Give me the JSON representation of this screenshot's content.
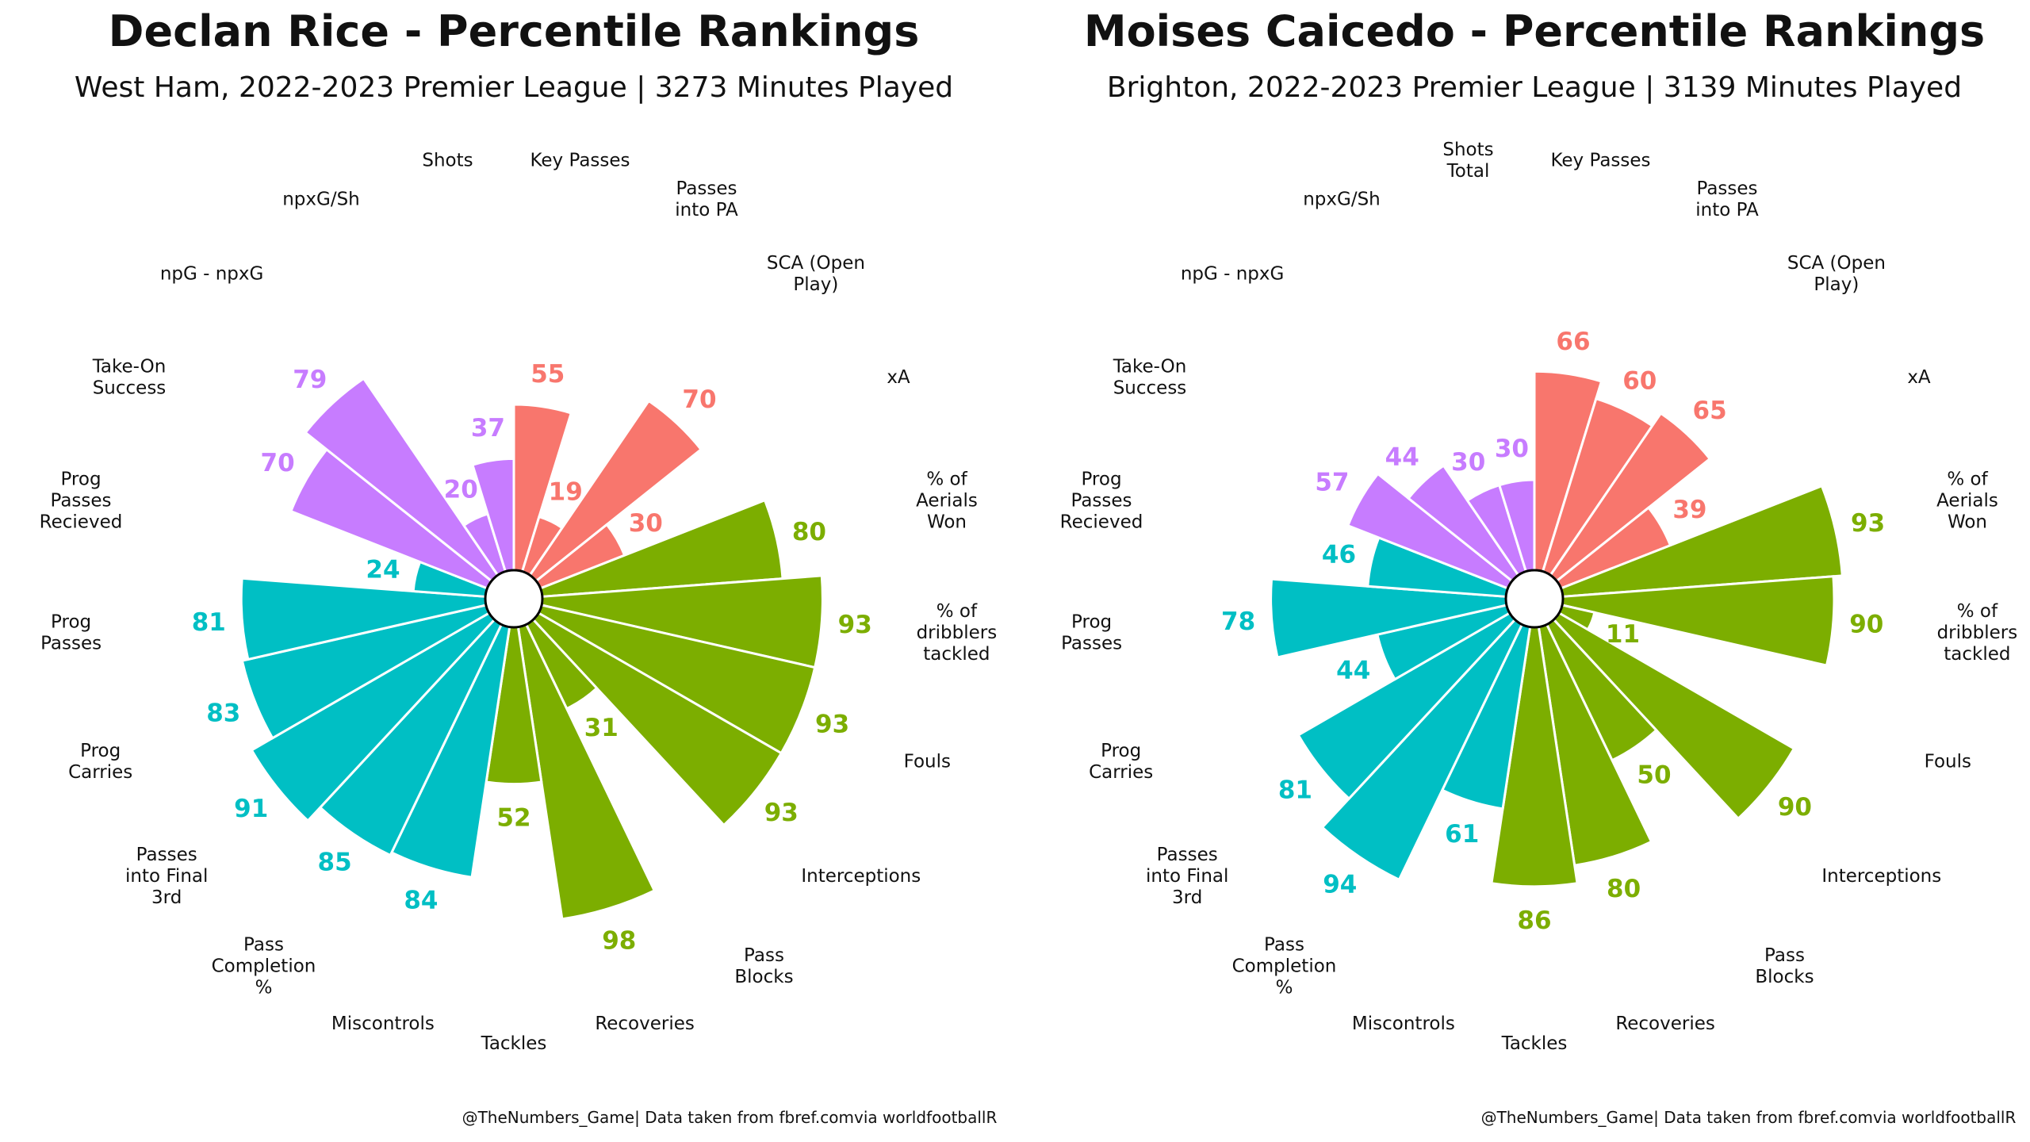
{
  "colors": {
    "attacking": "#F8766D",
    "shooting": "#C77CFF",
    "possession": "#00BFC4",
    "defending": "#7CAE00"
  },
  "chart_data": [
    {
      "type": "bar",
      "title": "Declan Rice - Percentile Rankings",
      "subtitle": "West Ham, 2022-2023 Premier League | 3273 Minutes Played",
      "footer": "@TheNumbers_Game| Data taken from fbref.comvia worldfootballR",
      "ylim": [
        0,
        100
      ],
      "categories": [
        "Key Passes",
        "Passes into PA",
        "SCA (Open Play)",
        "xA",
        "% of Aerials Won",
        "% of dribblers tackled",
        "Fouls",
        "Interceptions",
        "Pass Blocks",
        "Recoveries",
        "Tackles",
        "Miscontrols",
        "Pass Completion %",
        "Passes into Final 3rd",
        "Prog Carries",
        "Prog Passes",
        "Prog Passes Recieved",
        "Take-On Success",
        "npG - npxG",
        "npxG/Sh",
        "Shots"
      ],
      "category_lines": [
        [
          "Key Passes"
        ],
        [
          "Passes",
          "into PA"
        ],
        [
          "SCA (Open",
          "Play)"
        ],
        [
          "xA"
        ],
        [
          "% of",
          "Aerials",
          "Won"
        ],
        [
          "% of",
          "dribblers",
          "tackled"
        ],
        [
          "Fouls"
        ],
        [
          "Interceptions"
        ],
        [
          "Pass",
          "Blocks"
        ],
        [
          "Recoveries"
        ],
        [
          "Tackles"
        ],
        [
          "Miscontrols"
        ],
        [
          "Pass",
          "Completion",
          "%"
        ],
        [
          "Passes",
          "into Final",
          "3rd"
        ],
        [
          "Prog",
          "Carries"
        ],
        [
          "Prog",
          "Passes"
        ],
        [
          "Prog",
          "Passes",
          "Recieved"
        ],
        [
          "Take-On",
          "Success"
        ],
        [
          "npG - npxG"
        ],
        [
          "npxG/Sh"
        ],
        [
          "Shots"
        ]
      ],
      "groups": [
        "attacking",
        "attacking",
        "attacking",
        "attacking",
        "defending",
        "defending",
        "defending",
        "defending",
        "defending",
        "defending",
        "defending",
        "possession",
        "possession",
        "possession",
        "possession",
        "possession",
        "possession",
        "shooting",
        "shooting",
        "shooting",
        "shooting"
      ],
      "values": [
        55,
        19,
        70,
        30,
        80,
        93,
        93,
        93,
        31,
        98,
        52,
        84,
        85,
        91,
        83,
        81,
        24,
        70,
        79,
        20,
        37
      ]
    },
    {
      "type": "bar",
      "title": "Moises Caicedo - Percentile Rankings",
      "subtitle": "Brighton, 2022-2023 Premier League | 3139 Minutes Played",
      "footer": "@TheNumbers_Game| Data taken from fbref.comvia worldfootballR",
      "ylim": [
        0,
        100
      ],
      "categories": [
        "Key Passes",
        "Passes into PA",
        "SCA (Open Play)",
        "xA",
        "% of Aerials Won",
        "% of dribblers tackled",
        "Fouls",
        "Interceptions",
        "Pass Blocks",
        "Recoveries",
        "Tackles",
        "Miscontrols",
        "Pass Completion %",
        "Passes into Final 3rd",
        "Prog Carries",
        "Prog Passes",
        "Prog Passes Recieved",
        "Take-On Success",
        "npG - npxG",
        "npxG/Sh",
        "Shots Total"
      ],
      "category_lines": [
        [
          "Key Passes"
        ],
        [
          "Passes",
          "into PA"
        ],
        [
          "SCA (Open",
          "Play)"
        ],
        [
          "xA"
        ],
        [
          "% of",
          "Aerials",
          "Won"
        ],
        [
          "% of",
          "dribblers",
          "tackled"
        ],
        [
          "Fouls"
        ],
        [
          "Interceptions"
        ],
        [
          "Pass",
          "Blocks"
        ],
        [
          "Recoveries"
        ],
        [
          "Tackles"
        ],
        [
          "Miscontrols"
        ],
        [
          "Pass",
          "Completion",
          "%"
        ],
        [
          "Passes",
          "into Final",
          "3rd"
        ],
        [
          "Prog",
          "Carries"
        ],
        [
          "Prog",
          "Passes"
        ],
        [
          "Prog",
          "Passes",
          "Recieved"
        ],
        [
          "Take-On",
          "Success"
        ],
        [
          "npG - npxG"
        ],
        [
          "npxG/Sh"
        ],
        [
          "Shots",
          "Total"
        ]
      ],
      "groups": [
        "attacking",
        "attacking",
        "attacking",
        "attacking",
        "defending",
        "defending",
        "defending",
        "defending",
        "defending",
        "defending",
        "defending",
        "possession",
        "possession",
        "possession",
        "possession",
        "possession",
        "possession",
        "shooting",
        "shooting",
        "shooting",
        "shooting"
      ],
      "values": [
        66,
        60,
        65,
        39,
        93,
        90,
        11,
        90,
        50,
        80,
        86,
        61,
        94,
        81,
        44,
        78,
        46,
        57,
        44,
        30,
        30
      ]
    }
  ]
}
